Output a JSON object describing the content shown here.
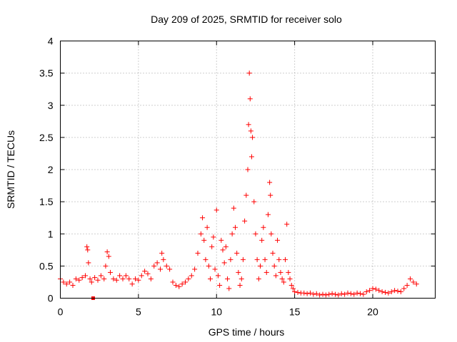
{
  "chart_data": {
    "type": "scatter",
    "title": "Day 209 of 2025, SRMTID for receiver solo",
    "xlabel": "GPS time / hours",
    "ylabel": "SRMTID / TECUs",
    "xlim": [
      0,
      24
    ],
    "ylim": [
      0,
      4
    ],
    "xticks": [
      0,
      5,
      10,
      15,
      20
    ],
    "xtick_labels": [
      "0",
      "5",
      "10",
      "15",
      "20"
    ],
    "yticks": [
      0,
      0.5,
      1,
      1.5,
      2,
      2.5,
      3,
      3.5,
      4
    ],
    "ytick_labels": [
      "0",
      "0.5",
      "1",
      "1.5",
      "2",
      "2.5",
      "3",
      "3.5",
      "4"
    ],
    "grid": true,
    "marker": "+",
    "color": "#ff0000",
    "series": [
      {
        "name": "SRMTID",
        "x": [
          0.0,
          0.2,
          0.4,
          0.6,
          0.8,
          1.0,
          1.2,
          1.4,
          1.6,
          1.7,
          1.75,
          1.8,
          1.9,
          2.0,
          2.2,
          2.4,
          2.6,
          2.8,
          2.9,
          3.0,
          3.1,
          3.2,
          3.4,
          3.6,
          3.8,
          4.0,
          4.2,
          4.4,
          4.6,
          4.8,
          5.0,
          5.2,
          5.4,
          5.6,
          5.8,
          6.0,
          6.2,
          6.4,
          6.5,
          6.6,
          6.8,
          7.0,
          7.2,
          7.4,
          7.6,
          7.8,
          8.0,
          8.2,
          8.4,
          8.6,
          8.8,
          9.0,
          9.1,
          9.2,
          9.3,
          9.4,
          9.5,
          9.6,
          9.7,
          9.8,
          9.9,
          10.0,
          10.1,
          10.2,
          10.3,
          10.4,
          10.5,
          10.6,
          10.7,
          10.8,
          10.9,
          11.0,
          11.1,
          11.2,
          11.3,
          11.4,
          11.5,
          11.6,
          11.7,
          11.8,
          11.9,
          12.0,
          12.05,
          12.1,
          12.15,
          12.2,
          12.25,
          12.3,
          12.4,
          12.5,
          12.6,
          12.7,
          12.8,
          12.9,
          13.0,
          13.1,
          13.2,
          13.3,
          13.4,
          13.45,
          13.5,
          13.6,
          13.7,
          13.8,
          13.9,
          14.0,
          14.1,
          14.2,
          14.3,
          14.4,
          14.5,
          14.6,
          14.7,
          14.8,
          14.9,
          15.0,
          15.2,
          15.4,
          15.6,
          15.8,
          16.0,
          16.2,
          16.4,
          16.6,
          16.8,
          17.0,
          17.2,
          17.4,
          17.6,
          17.8,
          18.0,
          18.2,
          18.4,
          18.6,
          18.8,
          19.0,
          19.2,
          19.4,
          19.6,
          19.8,
          20.0,
          20.2,
          20.4,
          20.6,
          20.8,
          21.0,
          21.2,
          21.4,
          21.6,
          21.8,
          22.0,
          22.2,
          22.4,
          22.6,
          22.8
        ],
        "y": [
          0.3,
          0.25,
          0.22,
          0.25,
          0.2,
          0.3,
          0.28,
          0.32,
          0.35,
          0.8,
          0.75,
          0.55,
          0.3,
          0.25,
          0.32,
          0.28,
          0.35,
          0.3,
          0.5,
          0.72,
          0.65,
          0.4,
          0.3,
          0.28,
          0.35,
          0.3,
          0.35,
          0.3,
          0.22,
          0.3,
          0.28,
          0.35,
          0.42,
          0.38,
          0.3,
          0.5,
          0.55,
          0.45,
          0.7,
          0.6,
          0.5,
          0.45,
          0.25,
          0.2,
          0.18,
          0.22,
          0.25,
          0.3,
          0.35,
          0.45,
          0.7,
          1.0,
          1.25,
          0.9,
          0.6,
          1.1,
          0.5,
          0.3,
          0.8,
          0.95,
          0.45,
          1.37,
          0.35,
          0.2,
          0.9,
          0.75,
          0.55,
          0.8,
          0.3,
          0.15,
          0.6,
          1.0,
          1.4,
          1.1,
          0.7,
          0.4,
          0.2,
          0.3,
          0.6,
          1.2,
          1.6,
          2.0,
          2.7,
          3.5,
          3.1,
          2.6,
          2.2,
          2.5,
          1.5,
          1.0,
          0.6,
          0.3,
          0.5,
          0.9,
          1.1,
          0.6,
          0.4,
          1.3,
          1.8,
          1.6,
          1.0,
          0.7,
          0.5,
          0.35,
          0.9,
          0.6,
          0.4,
          0.3,
          0.25,
          0.6,
          1.15,
          0.4,
          0.3,
          0.2,
          0.15,
          0.1,
          0.09,
          0.08,
          0.08,
          0.07,
          0.08,
          0.06,
          0.07,
          0.05,
          0.06,
          0.05,
          0.06,
          0.07,
          0.06,
          0.05,
          0.07,
          0.06,
          0.08,
          0.07,
          0.06,
          0.08,
          0.07,
          0.06,
          0.1,
          0.12,
          0.15,
          0.14,
          0.12,
          0.1,
          0.09,
          0.08,
          0.1,
          0.12,
          0.11,
          0.1,
          0.15,
          0.2,
          0.3,
          0.25,
          0.22
        ]
      }
    ],
    "annotations": [
      {
        "x": 2.1,
        "y": 0.0,
        "marker": "square"
      }
    ]
  }
}
